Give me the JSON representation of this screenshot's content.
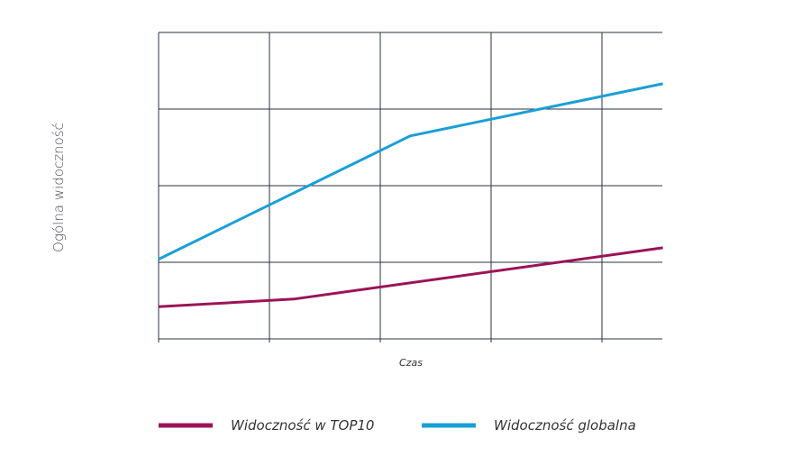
{
  "chart_data": {
    "type": "line",
    "xlabel": "Czas",
    "ylabel": "Ogólna widoczność",
    "xlim": [
      0,
      4.55
    ],
    "ylim": [
      0,
      4
    ],
    "grid": true,
    "legend_position": "bottom",
    "series": [
      {
        "name": "Widoczność w TOP10",
        "color": "#9b1457",
        "x": [
          0,
          1.22,
          4.55
        ],
        "y": [
          0.42,
          0.52,
          1.19
        ]
      },
      {
        "name": "Widoczność globalna",
        "color": "#1a9fd8",
        "x": [
          0,
          2.27,
          4.55
        ],
        "y": [
          1.04,
          2.65,
          3.33
        ]
      }
    ]
  }
}
